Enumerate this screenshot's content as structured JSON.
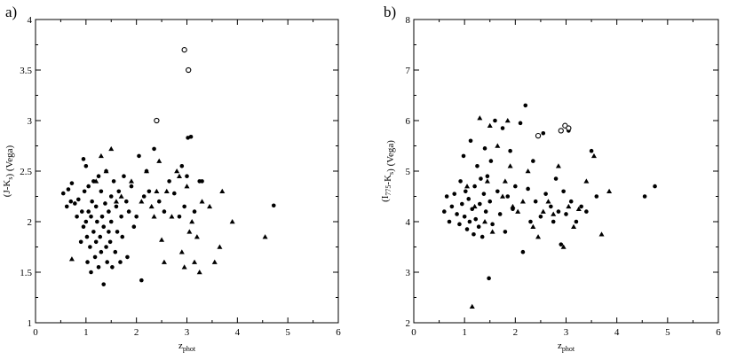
{
  "chart_data": [
    {
      "type": "scatter",
      "panel_label": "a)",
      "xlabel": "z_phot",
      "xlabel_main": "z",
      "xlabel_sub": "phot",
      "ylabel": "(J-K_s) (Vega)",
      "xlim": [
        0,
        6
      ],
      "ylim": [
        1,
        4
      ],
      "xticks": [
        0,
        1,
        2,
        3,
        4,
        5,
        6
      ],
      "yticks": [
        1,
        1.5,
        2,
        2.5,
        3,
        3.5,
        4
      ],
      "ytick_labels": [
        "1",
        "1.5",
        "2",
        "2.5",
        "3",
        "3.5",
        "4"
      ],
      "grid": false,
      "series": [
        {
          "marker": "filled-circle",
          "points": [
            [
              0.55,
              2.28
            ],
            [
              0.62,
              2.15
            ],
            [
              0.65,
              2.32
            ],
            [
              0.7,
              2.2
            ],
            [
              0.72,
              2.38
            ],
            [
              0.78,
              2.18
            ],
            [
              0.82,
              2.05
            ],
            [
              0.85,
              2.22
            ],
            [
              0.9,
              1.8
            ],
            [
              0.92,
              2.1
            ],
            [
              0.95,
              2.62
            ],
            [
              0.95,
              1.95
            ],
            [
              0.97,
              2.3
            ],
            [
              1.0,
              2.55
            ],
            [
              1.0,
              2.0
            ],
            [
              1.02,
              1.85
            ],
            [
              1.03,
              1.6
            ],
            [
              1.05,
              2.35
            ],
            [
              1.05,
              2.1
            ],
            [
              1.08,
              1.75
            ],
            [
              1.1,
              1.5
            ],
            [
              1.1,
              2.05
            ],
            [
              1.12,
              2.2
            ],
            [
              1.15,
              1.9
            ],
            [
              1.15,
              2.4
            ],
            [
              1.18,
              1.65
            ],
            [
              1.2,
              2.15
            ],
            [
              1.2,
              1.8
            ],
            [
              1.22,
              2.0
            ],
            [
              1.25,
              1.55
            ],
            [
              1.25,
              2.45
            ],
            [
              1.28,
              1.85
            ],
            [
              1.3,
              1.7
            ],
            [
              1.3,
              2.3
            ],
            [
              1.32,
              2.05
            ],
            [
              1.35,
              1.95
            ],
            [
              1.35,
              1.38
            ],
            [
              1.38,
              2.18
            ],
            [
              1.4,
              1.75
            ],
            [
              1.4,
              2.5
            ],
            [
              1.42,
              1.6
            ],
            [
              1.45,
              2.1
            ],
            [
              1.45,
              1.9
            ],
            [
              1.48,
              1.8
            ],
            [
              1.5,
              2.25
            ],
            [
              1.5,
              2.0
            ],
            [
              1.52,
              1.55
            ],
            [
              1.55,
              2.4
            ],
            [
              1.58,
              1.7
            ],
            [
              1.6,
              2.15
            ],
            [
              1.62,
              1.9
            ],
            [
              1.65,
              2.3
            ],
            [
              1.68,
              1.6
            ],
            [
              1.7,
              2.05
            ],
            [
              1.72,
              1.85
            ],
            [
              1.75,
              2.45
            ],
            [
              1.8,
              2.2
            ],
            [
              1.82,
              1.65
            ],
            [
              1.85,
              2.1
            ],
            [
              1.9,
              2.35
            ],
            [
              1.95,
              1.95
            ],
            [
              2.0,
              2.05
            ],
            [
              2.05,
              2.65
            ],
            [
              2.1,
              1.42
            ],
            [
              2.15,
              2.25
            ],
            [
              2.2,
              2.5
            ],
            [
              2.25,
              2.3
            ],
            [
              2.35,
              2.72
            ],
            [
              2.45,
              2.2
            ],
            [
              2.55,
              2.1
            ],
            [
              2.65,
              2.4
            ],
            [
              2.75,
              2.28
            ],
            [
              2.85,
              2.05
            ],
            [
              2.9,
              2.55
            ],
            [
              2.95,
              2.15
            ],
            [
              3.0,
              2.45
            ],
            [
              3.02,
              2.83
            ],
            [
              3.08,
              2.84
            ],
            [
              3.15,
              2.1
            ],
            [
              3.25,
              2.4
            ],
            [
              3.3,
              2.4
            ],
            [
              4.72,
              2.16
            ]
          ]
        },
        {
          "marker": "filled-triangle",
          "points": [
            [
              0.72,
              1.63
            ],
            [
              1.2,
              2.4
            ],
            [
              1.3,
              2.65
            ],
            [
              1.4,
              2.5
            ],
            [
              1.5,
              2.72
            ],
            [
              1.6,
              2.2
            ],
            [
              1.7,
              2.25
            ],
            [
              1.9,
              2.4
            ],
            [
              2.1,
              2.2
            ],
            [
              2.2,
              2.5
            ],
            [
              2.3,
              2.15
            ],
            [
              2.35,
              2.05
            ],
            [
              2.4,
              2.3
            ],
            [
              2.45,
              2.6
            ],
            [
              2.5,
              1.82
            ],
            [
              2.55,
              1.6
            ],
            [
              2.6,
              2.3
            ],
            [
              2.7,
              2.05
            ],
            [
              2.8,
              2.5
            ],
            [
              2.85,
              2.45
            ],
            [
              2.9,
              1.7
            ],
            [
              2.95,
              1.55
            ],
            [
              3.0,
              2.35
            ],
            [
              3.05,
              1.9
            ],
            [
              3.1,
              2.0
            ],
            [
              3.15,
              1.6
            ],
            [
              3.2,
              1.85
            ],
            [
              3.25,
              1.5
            ],
            [
              3.3,
              2.2
            ],
            [
              3.45,
              2.15
            ],
            [
              3.55,
              1.6
            ],
            [
              3.65,
              1.75
            ],
            [
              3.7,
              2.3
            ],
            [
              3.9,
              2.0
            ],
            [
              4.55,
              1.85
            ]
          ]
        },
        {
          "marker": "open-circle",
          "points": [
            [
              2.4,
              3.0
            ],
            [
              2.95,
              3.7
            ],
            [
              3.03,
              3.5
            ]
          ]
        }
      ]
    },
    {
      "type": "scatter",
      "panel_label": "b)",
      "xlabel": "z_phot",
      "xlabel_main": "z",
      "xlabel_sub": "phot",
      "ylabel": "(I_775-K_s) (Vega)",
      "xlim": [
        0,
        6
      ],
      "ylim": [
        2,
        8
      ],
      "xticks": [
        0,
        1,
        2,
        3,
        4,
        5,
        6
      ],
      "yticks": [
        2,
        3,
        4,
        5,
        6,
        7,
        8
      ],
      "ytick_labels": [
        "2",
        "3",
        "4",
        "5",
        "6",
        "7",
        "8"
      ],
      "grid": false,
      "series": [
        {
          "marker": "filled-circle",
          "points": [
            [
              0.6,
              4.2
            ],
            [
              0.65,
              4.5
            ],
            [
              0.7,
              4.0
            ],
            [
              0.75,
              4.3
            ],
            [
              0.8,
              4.55
            ],
            [
              0.85,
              4.15
            ],
            [
              0.9,
              3.95
            ],
            [
              0.92,
              4.8
            ],
            [
              0.95,
              4.35
            ],
            [
              0.98,
              5.3
            ],
            [
              1.0,
              4.1
            ],
            [
              1.02,
              4.6
            ],
            [
              1.05,
              3.85
            ],
            [
              1.08,
              4.45
            ],
            [
              1.1,
              4.0
            ],
            [
              1.12,
              5.6
            ],
            [
              1.15,
              4.25
            ],
            [
              1.18,
              3.75
            ],
            [
              1.2,
              4.7
            ],
            [
              1.22,
              4.05
            ],
            [
              1.25,
              5.1
            ],
            [
              1.28,
              3.9
            ],
            [
              1.3,
              4.35
            ],
            [
              1.32,
              4.85
            ],
            [
              1.35,
              3.7
            ],
            [
              1.38,
              4.55
            ],
            [
              1.4,
              5.45
            ],
            [
              1.42,
              4.2
            ],
            [
              1.45,
              4.9
            ],
            [
              1.48,
              2.88
            ],
            [
              1.5,
              4.4
            ],
            [
              1.52,
              5.2
            ],
            [
              1.55,
              3.95
            ],
            [
              1.6,
              6.0
            ],
            [
              1.65,
              4.6
            ],
            [
              1.7,
              4.15
            ],
            [
              1.75,
              5.85
            ],
            [
              1.8,
              3.8
            ],
            [
              1.85,
              4.5
            ],
            [
              1.9,
              5.4
            ],
            [
              1.95,
              4.25
            ],
            [
              2.0,
              4.7
            ],
            [
              2.1,
              5.95
            ],
            [
              2.15,
              3.4
            ],
            [
              2.2,
              6.3
            ],
            [
              2.25,
              4.65
            ],
            [
              2.3,
              4.0
            ],
            [
              2.35,
              5.2
            ],
            [
              2.4,
              4.4
            ],
            [
              2.5,
              4.1
            ],
            [
              2.55,
              5.75
            ],
            [
              2.6,
              4.55
            ],
            [
              2.7,
              4.3
            ],
            [
              2.75,
              4.0
            ],
            [
              2.8,
              4.85
            ],
            [
              2.85,
              4.2
            ],
            [
              2.9,
              3.55
            ],
            [
              2.95,
              4.6
            ],
            [
              3.0,
              4.15
            ],
            [
              3.05,
              5.8
            ],
            [
              3.1,
              4.4
            ],
            [
              3.2,
              4.0
            ],
            [
              3.3,
              4.3
            ],
            [
              3.4,
              4.2
            ],
            [
              3.5,
              5.4
            ],
            [
              3.6,
              4.5
            ],
            [
              4.55,
              4.5
            ],
            [
              4.75,
              4.7
            ]
          ]
        },
        {
          "marker": "filled-triangle",
          "points": [
            [
              1.05,
              4.7
            ],
            [
              1.15,
              2.32
            ],
            [
              1.2,
              4.3
            ],
            [
              1.3,
              6.05
            ],
            [
              1.4,
              4.0
            ],
            [
              1.45,
              4.8
            ],
            [
              1.5,
              5.9
            ],
            [
              1.55,
              3.8
            ],
            [
              1.65,
              5.5
            ],
            [
              1.75,
              4.5
            ],
            [
              1.8,
              4.8
            ],
            [
              1.85,
              6.0
            ],
            [
              1.9,
              5.1
            ],
            [
              1.95,
              4.3
            ],
            [
              2.05,
              4.2
            ],
            [
              2.15,
              4.4
            ],
            [
              2.25,
              5.0
            ],
            [
              2.35,
              3.9
            ],
            [
              2.45,
              3.7
            ],
            [
              2.55,
              4.2
            ],
            [
              2.65,
              4.4
            ],
            [
              2.75,
              4.15
            ],
            [
              2.85,
              5.1
            ],
            [
              2.95,
              3.5
            ],
            [
              3.05,
              4.3
            ],
            [
              3.15,
              3.9
            ],
            [
              3.25,
              4.25
            ],
            [
              3.4,
              4.8
            ],
            [
              3.55,
              5.3
            ],
            [
              3.7,
              3.75
            ],
            [
              3.85,
              4.6
            ]
          ]
        },
        {
          "marker": "open-circle",
          "points": [
            [
              2.45,
              5.7
            ],
            [
              2.9,
              5.8
            ],
            [
              2.98,
              5.9
            ],
            [
              3.05,
              5.85
            ]
          ]
        }
      ]
    }
  ]
}
